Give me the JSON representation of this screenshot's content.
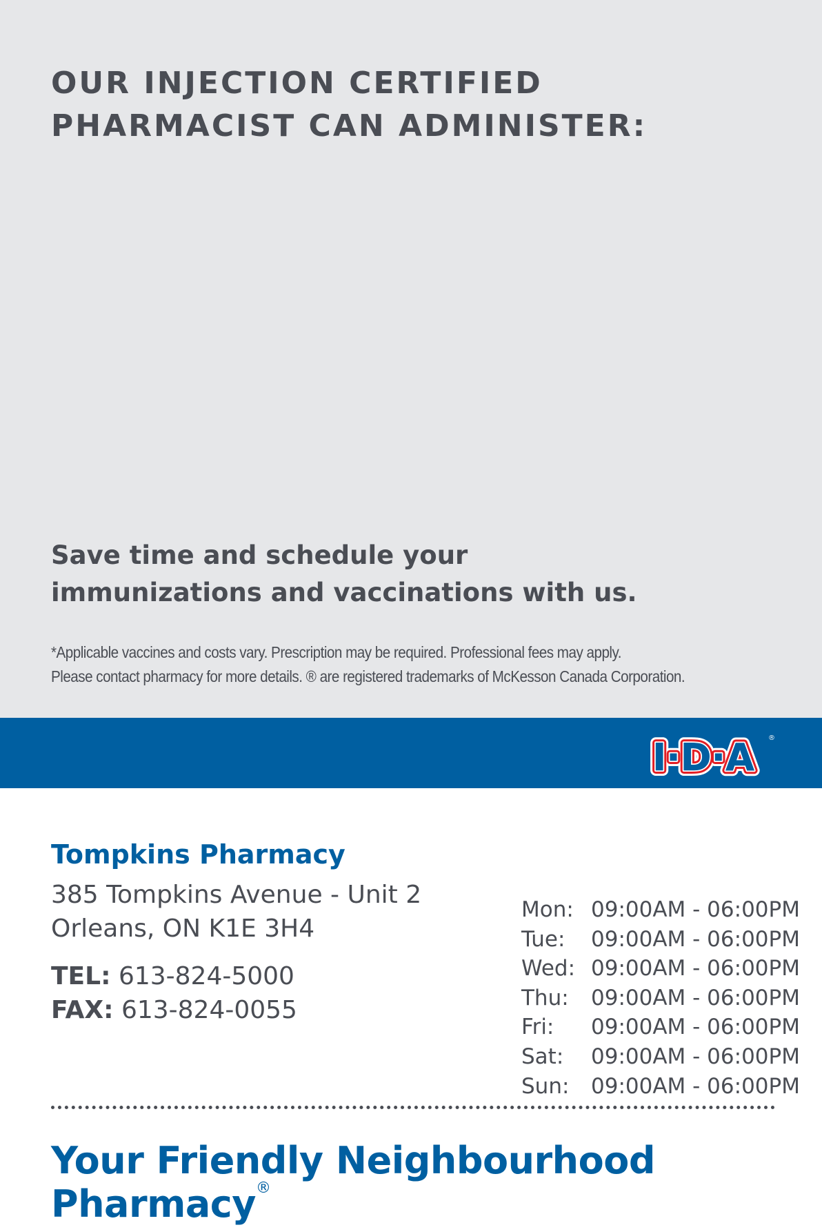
{
  "colors": {
    "brand_blue": "#005fa1",
    "panel_gray": "#e6e7e9",
    "text_gray": "#4a4d54",
    "logo_red": "#e31e24"
  },
  "headline": {
    "line1": "OUR INJECTION CERTIFIED",
    "line2": "PHARMACIST CAN ADMINISTER:"
  },
  "schedule": {
    "line1": "Save time and schedule your",
    "line2": "immunizations and vaccinations with us."
  },
  "disclaimer": {
    "line1": "*Applicable vaccines and costs vary. Prescription may be required. Professional fees may apply.",
    "line2": "Please contact pharmacy for more details. ® are registered trademarks of McKesson Canada Corporation."
  },
  "logo": {
    "text": "I·D·A",
    "registered": "®"
  },
  "pharmacy": {
    "name": "Tompkins Pharmacy",
    "address1": "385 Tompkins Avenue - Unit 2",
    "address2": "Orleans, ON K1E 3H4",
    "tel_label": "TEL:",
    "tel": "613-824-5000",
    "fax_label": "FAX:",
    "fax": "613-824-0055"
  },
  "hours": [
    {
      "day": "Mon:",
      "time": "09:00AM - 06:00PM"
    },
    {
      "day": "Tue:",
      "time": "09:00AM - 06:00PM"
    },
    {
      "day": "Wed:",
      "time": "09:00AM - 06:00PM"
    },
    {
      "day": "Thu:",
      "time": "09:00AM - 06:00PM"
    },
    {
      "day": "Fri:",
      "time": "09:00AM - 06:00PM"
    },
    {
      "day": "Sat:",
      "time": "09:00AM - 06:00PM"
    },
    {
      "day": "Sun:",
      "time": "09:00AM - 06:00PM"
    }
  ],
  "slogan": {
    "text": "Your Friendly Neighbourhood Pharmacy",
    "mark": "®"
  }
}
